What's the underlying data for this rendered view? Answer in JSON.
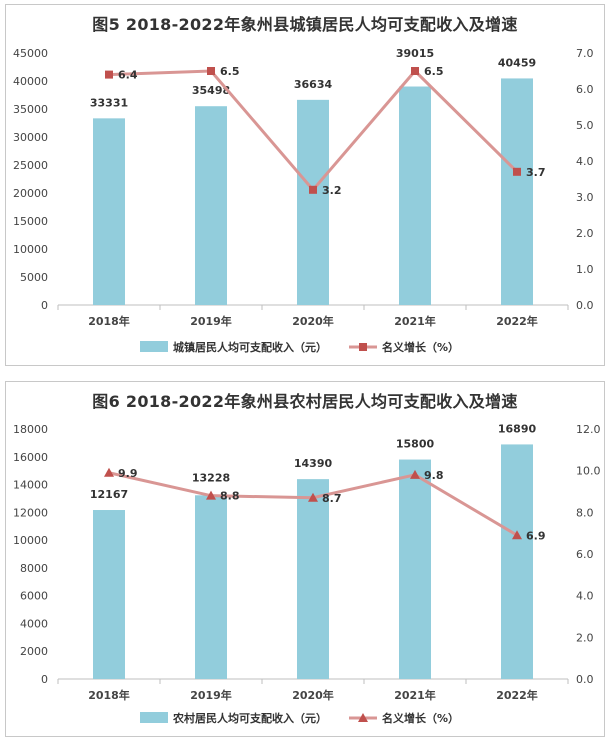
{
  "chart_data": [
    {
      "type": "bar+line",
      "title": "图5  2018-2022年象州县城镇居民人均可支配收入及增速",
      "categories": [
        "2018年",
        "2019年",
        "2020年",
        "2021年",
        "2022年"
      ],
      "bar_series": {
        "name": "城镇居民人均可支配收入（元）",
        "values": [
          33331,
          35498,
          36634,
          39015,
          40459
        ]
      },
      "line_series": {
        "name": "名义增长（%）",
        "values": [
          6.4,
          6.5,
          3.2,
          6.5,
          3.7
        ]
      },
      "y_left_ticks": [
        "0",
        "5000",
        "10000",
        "15000",
        "20000",
        "25000",
        "30000",
        "35000",
        "40000",
        "45000"
      ],
      "y_right_ticks": [
        "0.0",
        "1.0",
        "2.0",
        "3.0",
        "4.0",
        "5.0",
        "6.0",
        "7.0"
      ],
      "ylim_left": [
        0,
        45000
      ],
      "ylim_right": [
        0,
        7
      ],
      "marker": "square",
      "legend_position": "bottom",
      "bar_color": "#92cddc",
      "line_color": "#d99694",
      "marker_color": "#c0504d"
    },
    {
      "type": "bar+line",
      "title": "图6  2018-2022年象州县农村居民人均可支配收入及增速",
      "categories": [
        "2018年",
        "2019年",
        "2020年",
        "2021年",
        "2022年"
      ],
      "bar_series": {
        "name": "农村居民人均可支配收入（元）",
        "values": [
          12167,
          13228,
          14390,
          15800,
          16890
        ]
      },
      "line_series": {
        "name": "名义增长（%）",
        "values": [
          9.9,
          8.8,
          8.7,
          9.8,
          6.9
        ]
      },
      "y_left_ticks": [
        "0",
        "2000",
        "4000",
        "6000",
        "8000",
        "10000",
        "12000",
        "14000",
        "16000",
        "18000"
      ],
      "y_right_ticks": [
        "0.0",
        "2.0",
        "4.0",
        "6.0",
        "8.0",
        "10.0",
        "12.0"
      ],
      "ylim_left": [
        0,
        18000
      ],
      "ylim_right": [
        0,
        12
      ],
      "marker": "triangle",
      "legend_position": "bottom",
      "bar_color": "#92cddc",
      "line_color": "#d99694",
      "marker_color": "#c0504d"
    }
  ]
}
